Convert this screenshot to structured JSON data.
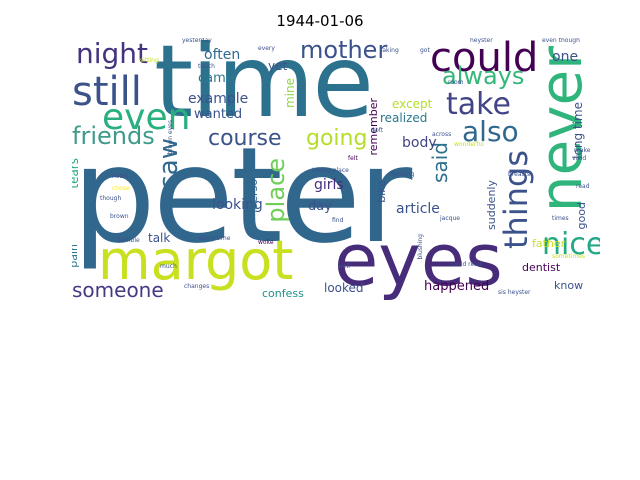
{
  "title": "1944-01-06",
  "words": [
    {
      "id": "peter",
      "text": "peter",
      "color": "#31668d"
    },
    {
      "id": "time",
      "text": "time",
      "color": "#2c728e"
    },
    {
      "id": "eyes",
      "text": "eyes",
      "color": "#472c7a"
    },
    {
      "id": "margot",
      "text": "margot",
      "color": "#c8e020"
    },
    {
      "id": "never",
      "text": "never",
      "color": "#2fb47c"
    },
    {
      "id": "could",
      "text": "could",
      "color": "#440154"
    },
    {
      "id": "still",
      "text": "still",
      "color": "#3b528b"
    },
    {
      "id": "even",
      "text": "even",
      "color": "#2ab07f"
    },
    {
      "id": "night",
      "text": "night",
      "color": "#46327e"
    },
    {
      "id": "mother",
      "text": "mother",
      "color": "#3b528b"
    },
    {
      "id": "always",
      "text": "always",
      "color": "#35b779"
    },
    {
      "id": "take",
      "text": "take",
      "color": "#414487"
    },
    {
      "id": "also",
      "text": "also",
      "color": "#31688e"
    },
    {
      "id": "things",
      "text": "things",
      "color": "#3b528b"
    },
    {
      "id": "nice",
      "text": "nice",
      "color": "#22a884"
    },
    {
      "id": "friends",
      "text": "friends",
      "color": "#3e9b8a"
    },
    {
      "id": "course",
      "text": "course",
      "color": "#3b528b"
    },
    {
      "id": "going",
      "text": "going",
      "color": "#b5de2b"
    },
    {
      "id": "saw",
      "text": "saw",
      "color": "#31688e"
    },
    {
      "id": "place",
      "text": "place",
      "color": "#6ece58"
    },
    {
      "id": "someone",
      "text": "someone",
      "color": "#443a83"
    },
    {
      "id": "said",
      "text": "said",
      "color": "#2d708e"
    },
    {
      "id": "often",
      "text": "often",
      "color": "#31688e"
    },
    {
      "id": "example",
      "text": "example",
      "color": "#3b528b"
    },
    {
      "id": "came",
      "text": "came",
      "color": "#2a788e"
    },
    {
      "id": "wanted",
      "text": "wanted",
      "color": "#3b528b"
    },
    {
      "id": "yet",
      "text": "yet",
      "color": "#3b528b"
    },
    {
      "id": "mine",
      "text": "mine",
      "color": "#90d743"
    },
    {
      "id": "one",
      "text": "one",
      "color": "#3b528b"
    },
    {
      "id": "realized",
      "text": "realized",
      "color": "#2a788e"
    },
    {
      "id": "except",
      "text": "except",
      "color": "#b5de2b"
    },
    {
      "id": "remember",
      "text": "remember",
      "color": "#440154"
    },
    {
      "id": "long-time",
      "text": "long time",
      "color": "#3b528b"
    },
    {
      "id": "body",
      "text": "body",
      "color": "#414487"
    },
    {
      "id": "tears",
      "text": "tears",
      "color": "#22a884"
    },
    {
      "id": "girls",
      "text": "girls",
      "color": "#472d7b"
    },
    {
      "id": "looking",
      "text": "looking",
      "color": "#3b528b"
    },
    {
      "id": "day",
      "text": "day",
      "color": "#3b528b"
    },
    {
      "id": "article",
      "text": "article",
      "color": "#3b528b"
    },
    {
      "id": "person",
      "text": "person",
      "color": "#31688e"
    },
    {
      "id": "suddenly",
      "text": "suddenly",
      "color": "#3b528b"
    },
    {
      "id": "bike",
      "text": "bike",
      "color": "#3b528b"
    },
    {
      "id": "good",
      "text": "good",
      "color": "#3b528b"
    },
    {
      "id": "father",
      "text": "father",
      "color": "#c8e020"
    },
    {
      "id": "dentist",
      "text": "dentist",
      "color": "#440154"
    },
    {
      "id": "talk",
      "text": "talk",
      "color": "#3b528b"
    },
    {
      "id": "pain",
      "text": "pain",
      "color": "#2a788e"
    },
    {
      "id": "happened",
      "text": "happened",
      "color": "#440154"
    },
    {
      "id": "know",
      "text": "know",
      "color": "#3b528b"
    },
    {
      "id": "confess",
      "text": "confess",
      "color": "#21918c"
    },
    {
      "id": "looked",
      "text": "looked",
      "color": "#3b528b"
    },
    {
      "id": "felt",
      "text": "felt",
      "color": "#440154"
    },
    {
      "id": "thinking",
      "text": "thinking",
      "color": "#3b528b"
    },
    {
      "id": "breasts",
      "text": "breasts",
      "color": "#3b528b"
    },
    {
      "id": "find",
      "text": "find",
      "color": "#3b528b"
    },
    {
      "id": "jacque",
      "text": "jacque",
      "color": "#3b528b"
    },
    {
      "id": "times",
      "text": "times",
      "color": "#3b528b"
    },
    {
      "id": "soft",
      "text": "soft",
      "color": "#31688e"
    },
    {
      "id": "across",
      "text": "across",
      "color": "#3b528b"
    },
    {
      "id": "wonderful",
      "text": "wonderful",
      "color": "#c8e020"
    },
    {
      "id": "make",
      "text": "make",
      "color": "#3b528b"
    },
    {
      "id": "vivid",
      "text": "vivid",
      "color": "#3b528b"
    },
    {
      "id": "read",
      "text": "read",
      "color": "#3b528b"
    },
    {
      "id": "room",
      "text": "room",
      "color": "#3b528b"
    },
    {
      "id": "taking",
      "text": "taking",
      "color": "#3b528b"
    },
    {
      "id": "yesterday",
      "text": "yesterday",
      "color": "#3b528b"
    },
    {
      "id": "heyster",
      "text": "heyster",
      "color": "#3b528b"
    },
    {
      "id": "even-though",
      "text": "even though",
      "color": "#3b528b"
    },
    {
      "id": "brown-eyes",
      "text": "brown eyes",
      "color": "#3b528b"
    },
    {
      "id": "heart",
      "text": "heart",
      "color": "#3b528b"
    },
    {
      "id": "chose",
      "text": "chose",
      "color": "#fde725"
    },
    {
      "id": "though",
      "text": "though",
      "color": "#3b528b"
    },
    {
      "id": "brown",
      "text": "brown",
      "color": "#3b528b"
    },
    {
      "id": "terrible",
      "text": "terrible",
      "color": "#3b528b"
    },
    {
      "id": "every-time",
      "text": "every time",
      "color": "#3b528b"
    },
    {
      "id": "woke",
      "text": "woke",
      "color": "#440154"
    },
    {
      "id": "changes",
      "text": "changes",
      "color": "#3b528b"
    },
    {
      "id": "taking-place",
      "text": "taking place",
      "color": "#3b528b"
    },
    {
      "id": "blushing",
      "text": "blushing",
      "color": "#3b528b"
    },
    {
      "id": "could-read",
      "text": "could read",
      "color": "#3b528b"
    },
    {
      "id": "sis-heyster",
      "text": "sis heyster",
      "color": "#3b528b"
    },
    {
      "id": "well",
      "text": "well",
      "color": "#3b528b"
    },
    {
      "id": "every",
      "text": "every",
      "color": "#3b528b"
    },
    {
      "id": "touch",
      "text": "touch",
      "color": "#3b528b"
    },
    {
      "id": "sitting",
      "text": "sitting",
      "color": "#c8e020"
    },
    {
      "id": "got",
      "text": "got",
      "color": "#3b528b"
    },
    {
      "id": "sometimes",
      "text": "sometimes",
      "color": "#c8e020"
    },
    {
      "id": "much",
      "text": "much",
      "color": "#3b528b"
    }
  ]
}
